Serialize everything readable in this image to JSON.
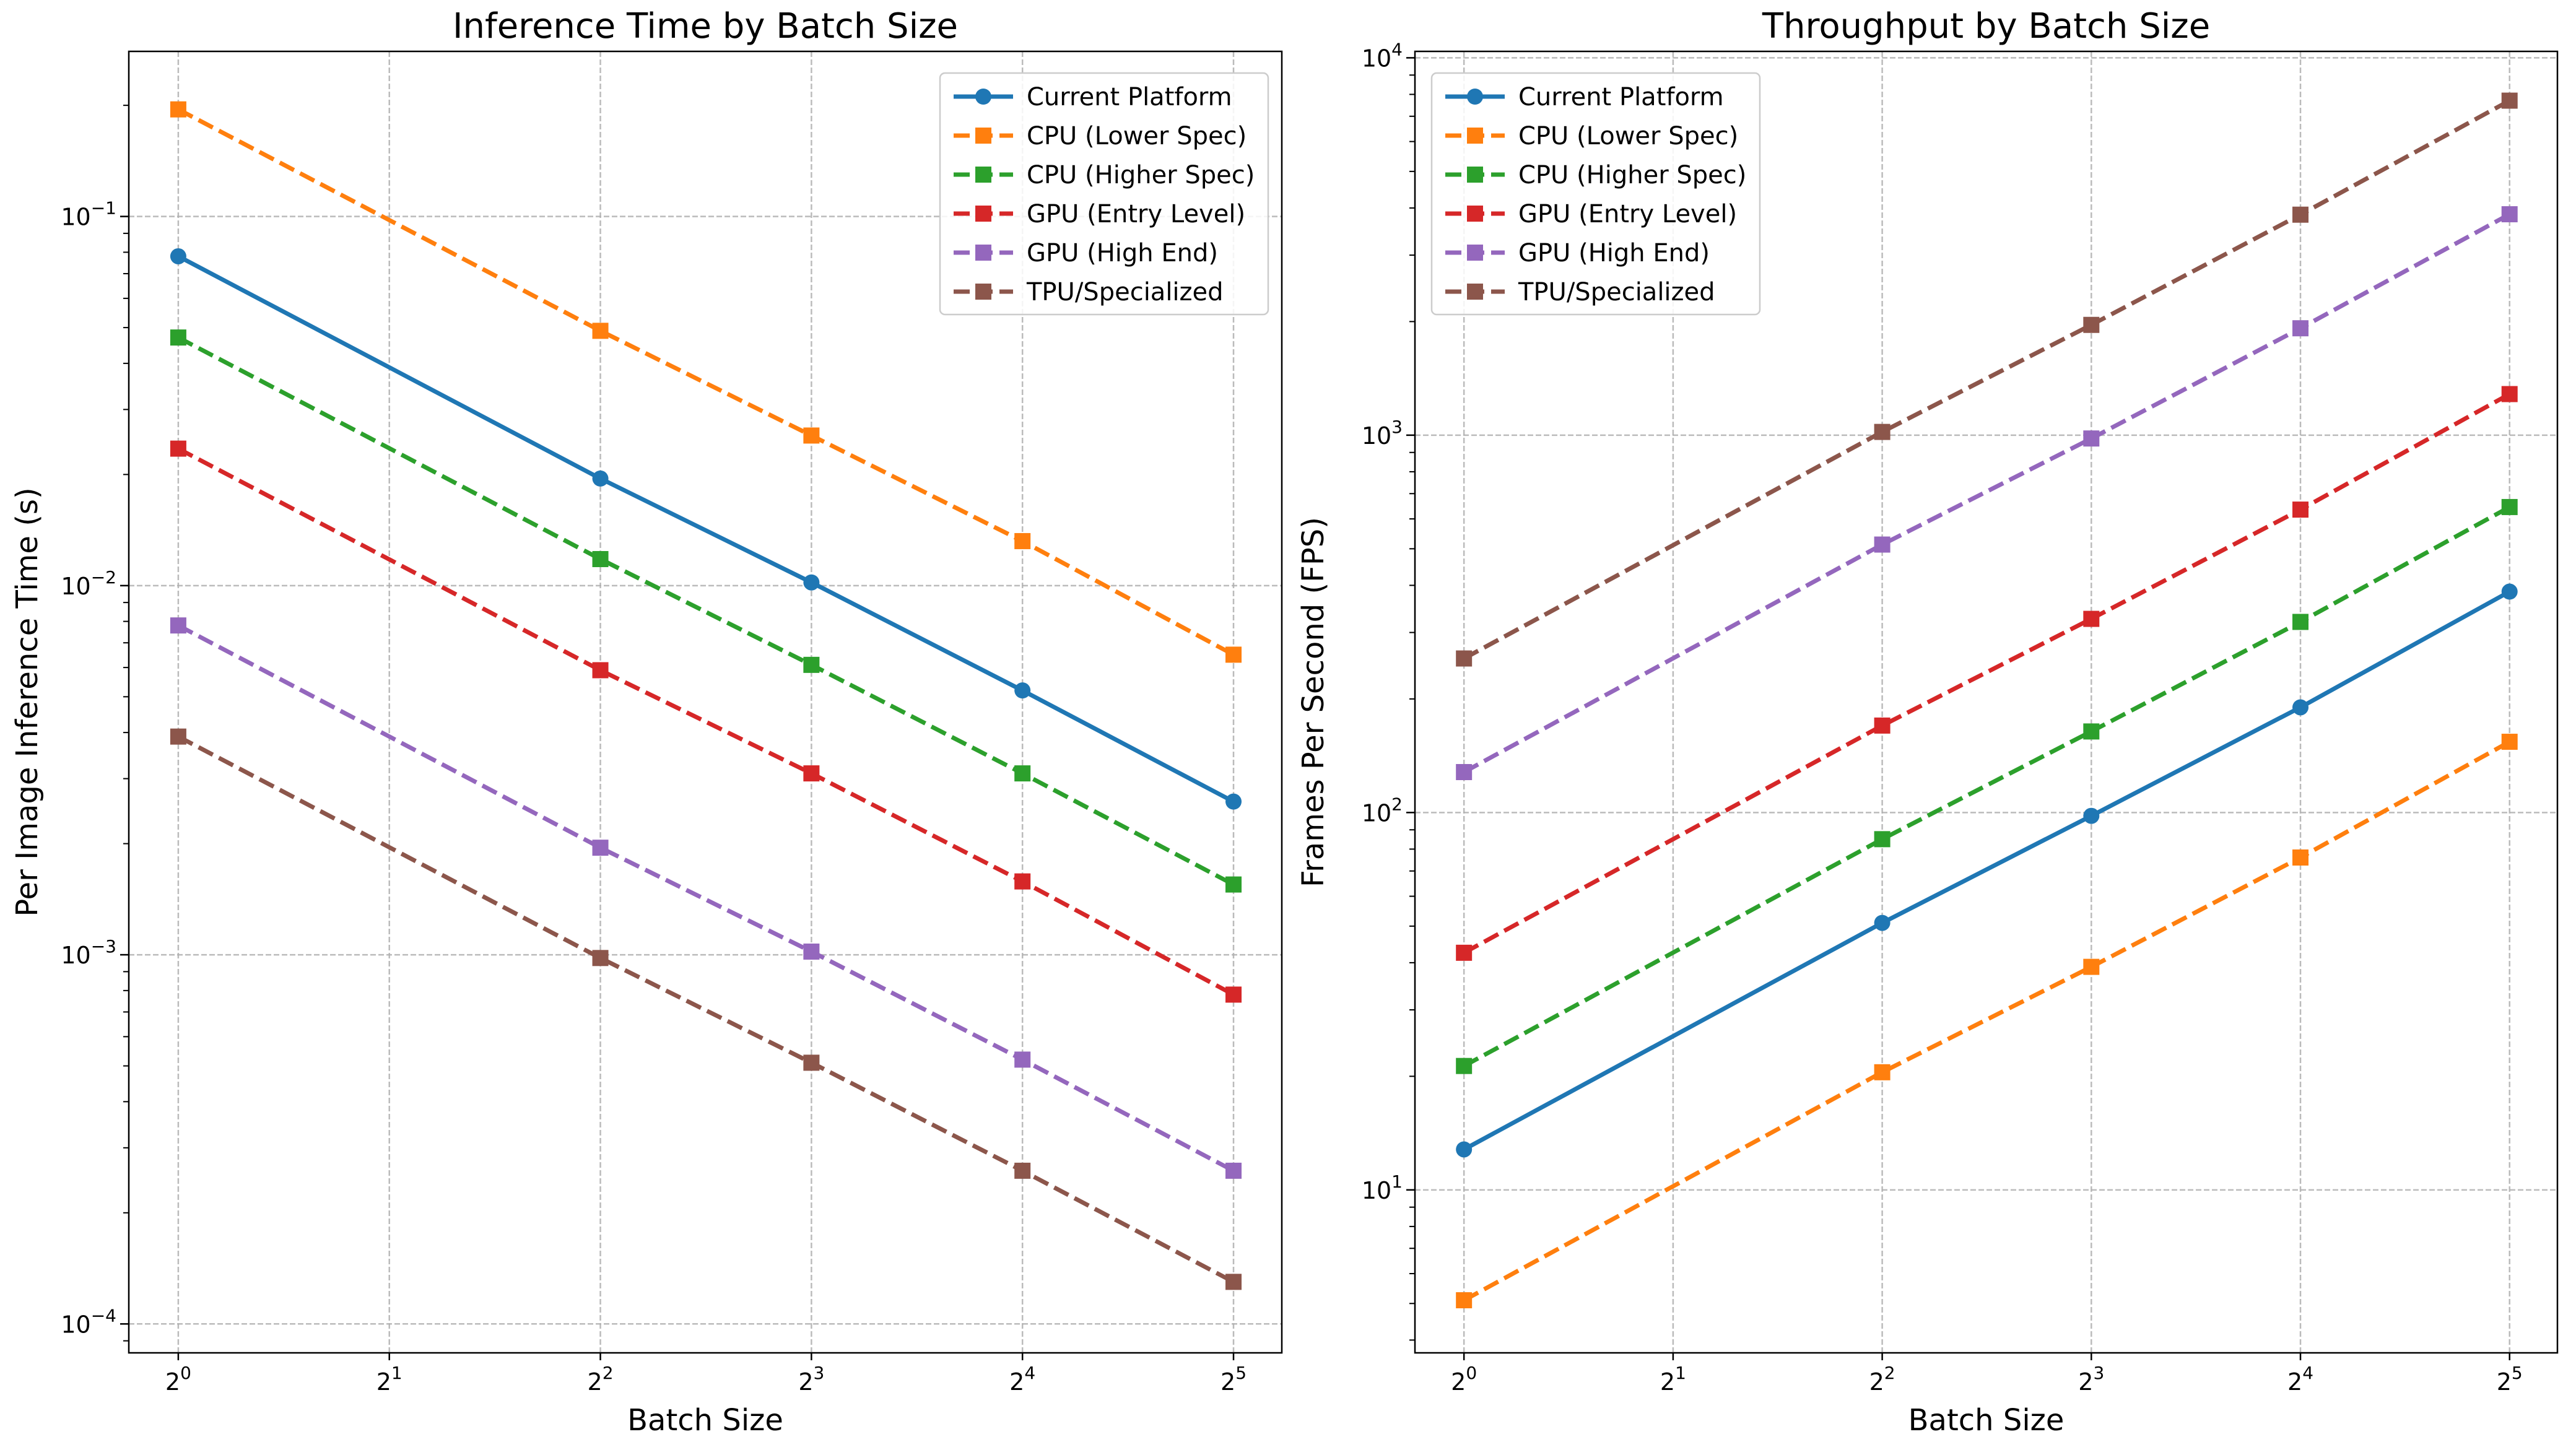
{
  "chart_data": [
    {
      "type": "line",
      "title": "Inference Time by Batch Size",
      "xlabel": "Batch Size",
      "ylabel": "Per Image Inference Time (s)",
      "xscale": "log2",
      "yscale": "log10",
      "xlim": [
        0.85,
        37.5
      ],
      "ylim": [
        8.35e-05,
        0.28
      ],
      "grid": true,
      "legend_loc": "top-right",
      "xticks": [
        {
          "base": "2",
          "exp": "0",
          "value": 1
        },
        {
          "base": "2",
          "exp": "1",
          "value": 2
        },
        {
          "base": "2",
          "exp": "2",
          "value": 4
        },
        {
          "base": "2",
          "exp": "3",
          "value": 8
        },
        {
          "base": "2",
          "exp": "4",
          "value": 16
        },
        {
          "base": "2",
          "exp": "5",
          "value": 32
        }
      ],
      "yticks": [
        {
          "base": "10",
          "exp": "−4",
          "value": 0.0001
        },
        {
          "base": "10",
          "exp": "−3",
          "value": 0.001
        },
        {
          "base": "10",
          "exp": "−2",
          "value": 0.01
        },
        {
          "base": "10",
          "exp": "−1",
          "value": 0.1
        }
      ],
      "x": [
        1,
        4,
        8,
        16,
        32
      ],
      "series": [
        {
          "name": "Current Platform",
          "color": "#1f77b4",
          "style": "solid",
          "marker": "circle",
          "values": [
            0.078,
            0.0195,
            0.0102,
            0.0052,
            0.0026
          ]
        },
        {
          "name": "CPU (Lower Spec)",
          "color": "#ff7f0e",
          "style": "dashed",
          "marker": "square",
          "values": [
            0.195,
            0.049,
            0.0255,
            0.0132,
            0.0065
          ]
        },
        {
          "name": "CPU (Higher Spec)",
          "color": "#2ca02c",
          "style": "dashed",
          "marker": "square",
          "values": [
            0.047,
            0.0118,
            0.0061,
            0.0031,
            0.00155
          ]
        },
        {
          "name": "GPU (Entry Level)",
          "color": "#d62728",
          "style": "dashed",
          "marker": "square",
          "values": [
            0.0235,
            0.0059,
            0.0031,
            0.00158,
            0.00078
          ]
        },
        {
          "name": "GPU (High End)",
          "color": "#9467bd",
          "style": "dashed",
          "marker": "square",
          "values": [
            0.0078,
            0.00195,
            0.00102,
            0.00052,
            0.00026
          ]
        },
        {
          "name": "TPU/Specialized",
          "color": "#8c564b",
          "style": "dashed",
          "marker": "square",
          "values": [
            0.0039,
            0.00098,
            0.00051,
            0.00026,
            0.00013
          ]
        }
      ]
    },
    {
      "type": "line",
      "title": "Throughput by Batch Size",
      "xlabel": "Batch Size",
      "ylabel": "Frames Per Second (FPS)",
      "xscale": "log2",
      "yscale": "log10",
      "xlim": [
        0.85,
        37.5
      ],
      "ylim": [
        3.7,
        10400
      ],
      "grid": true,
      "legend_loc": "top-left",
      "xticks": [
        {
          "base": "2",
          "exp": "0",
          "value": 1
        },
        {
          "base": "2",
          "exp": "1",
          "value": 2
        },
        {
          "base": "2",
          "exp": "2",
          "value": 4
        },
        {
          "base": "2",
          "exp": "3",
          "value": 8
        },
        {
          "base": "2",
          "exp": "4",
          "value": 16
        },
        {
          "base": "2",
          "exp": "5",
          "value": 32
        }
      ],
      "yticks": [
        {
          "base": "10",
          "exp": "1",
          "value": 10
        },
        {
          "base": "10",
          "exp": "2",
          "value": 100
        },
        {
          "base": "10",
          "exp": "3",
          "value": 1000
        },
        {
          "base": "10",
          "exp": "4",
          "value": 10000
        }
      ],
      "x": [
        1,
        4,
        8,
        16,
        32
      ],
      "series": [
        {
          "name": "Current Platform",
          "color": "#1f77b4",
          "style": "solid",
          "marker": "circle",
          "values": [
            12.8,
            51,
            98,
            190,
            385
          ]
        },
        {
          "name": "CPU (Lower Spec)",
          "color": "#ff7f0e",
          "style": "dashed",
          "marker": "square",
          "values": [
            5.1,
            20.5,
            39,
            76,
            154
          ]
        },
        {
          "name": "CPU (Higher Spec)",
          "color": "#2ca02c",
          "style": "dashed",
          "marker": "square",
          "values": [
            21.3,
            85,
            164,
            320,
            645
          ]
        },
        {
          "name": "GPU (Entry Level)",
          "color": "#d62728",
          "style": "dashed",
          "marker": "square",
          "values": [
            42.5,
            170,
            326,
            635,
            1285
          ]
        },
        {
          "name": "GPU (High End)",
          "color": "#9467bd",
          "style": "dashed",
          "marker": "square",
          "values": [
            128,
            513,
            980,
            1920,
            3850
          ]
        },
        {
          "name": "TPU/Specialized",
          "color": "#8c564b",
          "style": "dashed",
          "marker": "square",
          "values": [
            256,
            1020,
            1960,
            3840,
            7700
          ]
        }
      ]
    }
  ]
}
